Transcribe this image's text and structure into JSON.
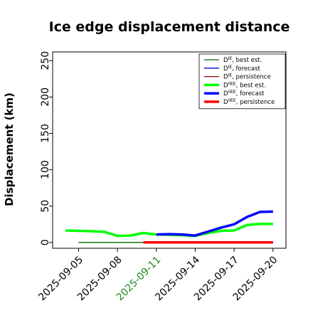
{
  "chart_data": {
    "type": "line",
    "title": "Ice edge displacement distance",
    "ylabel": "Displacement (km)",
    "xlabel": "",
    "ylim": [
      -8,
      262
    ],
    "yticks": [
      0,
      50,
      100,
      150,
      200,
      250
    ],
    "xlim": [
      "2025-09-03",
      "2025-09-21"
    ],
    "xticks": [
      "2025-09-05",
      "2025-09-08",
      "2025-09-11",
      "2025-09-14",
      "2025-09-17",
      "2025-09-20"
    ],
    "highlight_tick": "2025-09-11",
    "highlight_color": "#228B22",
    "grid": false,
    "legend_position": "top-right",
    "series": [
      {
        "name": "D^IE, best est.",
        "legend_base": "D",
        "legend_sup": "IE",
        "legend_rest": ", best est.",
        "color": "#006400",
        "width": 1.3,
        "x": [
          "2025-09-05",
          "2025-09-06",
          "2025-09-07",
          "2025-09-08",
          "2025-09-09",
          "2025-09-10",
          "2025-09-11"
        ],
        "y": [
          0,
          0,
          0,
          0,
          0,
          0,
          0
        ]
      },
      {
        "name": "D^IE, forecast",
        "legend_base": "D",
        "legend_sup": "IE",
        "legend_rest": ", forecast",
        "color": "#0000cd",
        "width": 1.3,
        "x": [
          "2025-09-11",
          "2025-09-12",
          "2025-09-13",
          "2025-09-14",
          "2025-09-15",
          "2025-09-16",
          "2025-09-17",
          "2025-09-18",
          "2025-09-19",
          "2025-09-20"
        ],
        "y": [
          0,
          0,
          0,
          0,
          0,
          0,
          0,
          0,
          0,
          0
        ]
      },
      {
        "name": "D^IE, persistence",
        "legend_base": "D",
        "legend_sup": "IE",
        "legend_rest": ", persistence",
        "color": "#8b0000",
        "width": 1.3,
        "x": [
          "2025-09-10",
          "2025-09-20"
        ],
        "y": [
          0,
          0
        ]
      },
      {
        "name": "D^IIEE, best est.",
        "legend_base": "D",
        "legend_sup": "IIEE",
        "legend_rest": ", best est.",
        "color": "#00ff00",
        "width": 3.5,
        "x": [
          "2025-09-04",
          "2025-09-05",
          "2025-09-06",
          "2025-09-07",
          "2025-09-08",
          "2025-09-09",
          "2025-09-10",
          "2025-09-11",
          "2025-09-12",
          "2025-09-13",
          "2025-09-14",
          "2025-09-15",
          "2025-09-16",
          "2025-09-17",
          "2025-09-18",
          "2025-09-19",
          "2025-09-20"
        ],
        "y": [
          16.5,
          16,
          15.5,
          14.5,
          9,
          9.5,
          13,
          11,
          10.5,
          10,
          9,
          13,
          16,
          16.5,
          24,
          25.5,
          25.5
        ]
      },
      {
        "name": "D^IIEE, forecast",
        "legend_base": "D",
        "legend_sup": "IIEE",
        "legend_rest": ", forecast",
        "color": "#0000ff",
        "width": 3.5,
        "x": [
          "2025-09-11",
          "2025-09-12",
          "2025-09-13",
          "2025-09-14",
          "2025-09-15",
          "2025-09-16",
          "2025-09-17",
          "2025-09-18",
          "2025-09-19",
          "2025-09-20"
        ],
        "y": [
          11,
          11.5,
          11,
          9.5,
          15,
          20.5,
          25,
          35,
          42,
          42.5
        ]
      },
      {
        "name": "D^IIEE, persistence",
        "legend_base": "D",
        "legend_sup": "IIEE",
        "legend_rest": ", persistence",
        "color": "#ff0000",
        "width": 3.5,
        "x": [
          "2025-09-10",
          "2025-09-20"
        ],
        "y": [
          0,
          0
        ]
      }
    ]
  }
}
